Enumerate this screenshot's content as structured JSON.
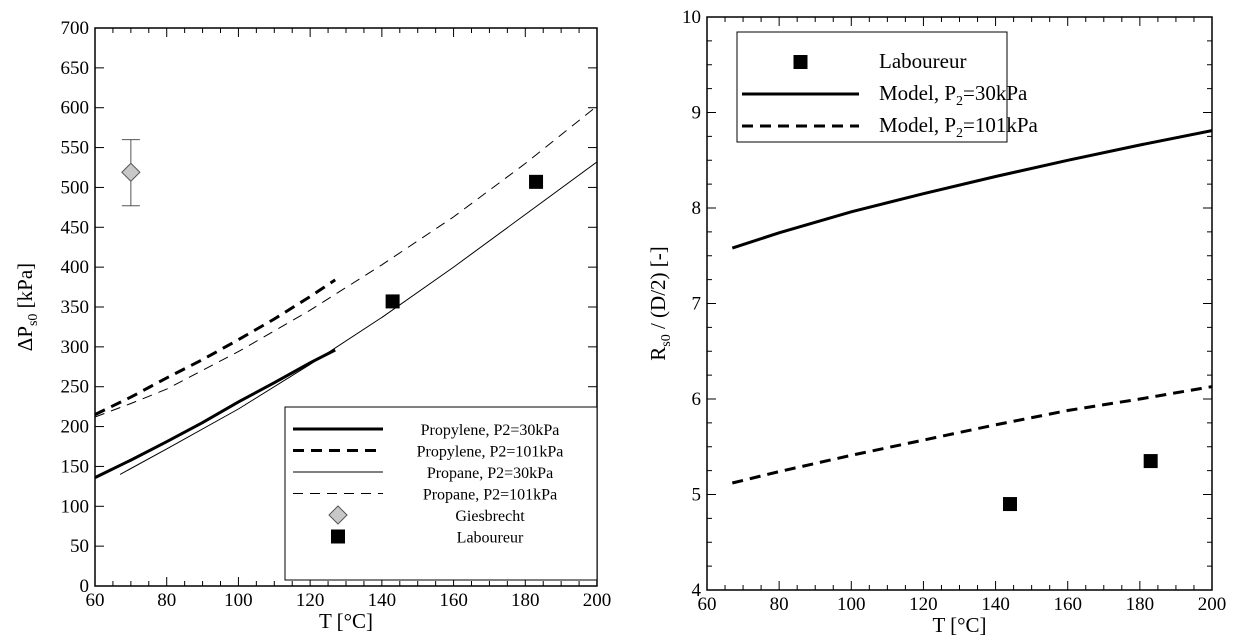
{
  "chart_data": [
    {
      "type": "line",
      "xlabel": "T [°C]",
      "ylabel": "ΔP",
      "ylabel_sub": "s0",
      "ylabel_tail": " [kPa]",
      "xlim": [
        60,
        200
      ],
      "ylim": [
        0,
        700
      ],
      "xticks": [
        60,
        80,
        100,
        120,
        140,
        160,
        180,
        200
      ],
      "yticks": [
        0,
        50,
        100,
        150,
        200,
        250,
        300,
        350,
        400,
        450,
        500,
        550,
        600,
        650,
        700
      ],
      "grid": false,
      "legend_position": "bottom-right",
      "series": [
        {
          "name": "Propylene, P2=30kPa",
          "style": "thick-solid",
          "x": [
            60,
            70,
            80,
            90,
            100,
            110,
            120,
            127
          ],
          "y": [
            136,
            158,
            181,
            205,
            231,
            255,
            280,
            296
          ]
        },
        {
          "name": "Propylene, P2=101kPa",
          "style": "thick-dashed",
          "x": [
            60,
            70,
            80,
            90,
            100,
            110,
            120,
            127
          ],
          "y": [
            215,
            237,
            261,
            284,
            309,
            335,
            363,
            384
          ]
        },
        {
          "name": "Propane, P2=30kPa",
          "style": "thin-solid",
          "x": [
            67,
            80,
            100,
            120,
            140,
            160,
            180,
            200
          ],
          "y": [
            140,
            172,
            222,
            278,
            337,
            400,
            466,
            532
          ]
        },
        {
          "name": "Propane, P2=101kPa",
          "style": "thin-dashed",
          "x": [
            60,
            70,
            80,
            100,
            120,
            140,
            160,
            180,
            200
          ],
          "y": [
            212,
            229,
            247,
            294,
            346,
            403,
            463,
            530,
            602
          ]
        },
        {
          "name": "Giesbrecht",
          "style": "diamond",
          "x": [
            70
          ],
          "y": [
            519
          ],
          "yerr_low": [
            477
          ],
          "yerr_high": [
            560
          ]
        },
        {
          "name": "Laboureur",
          "style": "square",
          "x": [
            143,
            183
          ],
          "y": [
            357,
            507
          ]
        }
      ]
    },
    {
      "type": "line",
      "xlabel": "T [°C]",
      "ylabel": "R",
      "ylabel_sub": "s0",
      "ylabel_tail": " / (D/2) [-]",
      "xlim": [
        60,
        200
      ],
      "ylim": [
        4,
        10
      ],
      "xticks": [
        60,
        80,
        100,
        120,
        140,
        160,
        180,
        200
      ],
      "yticks": [
        4,
        5,
        6,
        7,
        8,
        9,
        10
      ],
      "grid": false,
      "legend_position": "top-left",
      "series": [
        {
          "name": "Laboureur",
          "style": "square",
          "x": [
            144,
            183
          ],
          "y": [
            4.9,
            5.35
          ]
        },
        {
          "name": "Model, P",
          "name_sub": "2",
          "name_tail": "=30kPa",
          "style": "thick-solid",
          "x": [
            67,
            80,
            100,
            120,
            140,
            160,
            180,
            200
          ],
          "y": [
            7.58,
            7.74,
            7.96,
            8.15,
            8.33,
            8.5,
            8.66,
            8.81
          ]
        },
        {
          "name": "Model, P",
          "name_sub": "2",
          "name_tail": "=101kPa",
          "style": "thick-dashed",
          "x": [
            67,
            80,
            100,
            120,
            140,
            160,
            180,
            200
          ],
          "y": [
            5.12,
            5.24,
            5.41,
            5.57,
            5.73,
            5.88,
            6.0,
            6.13
          ]
        }
      ]
    }
  ]
}
